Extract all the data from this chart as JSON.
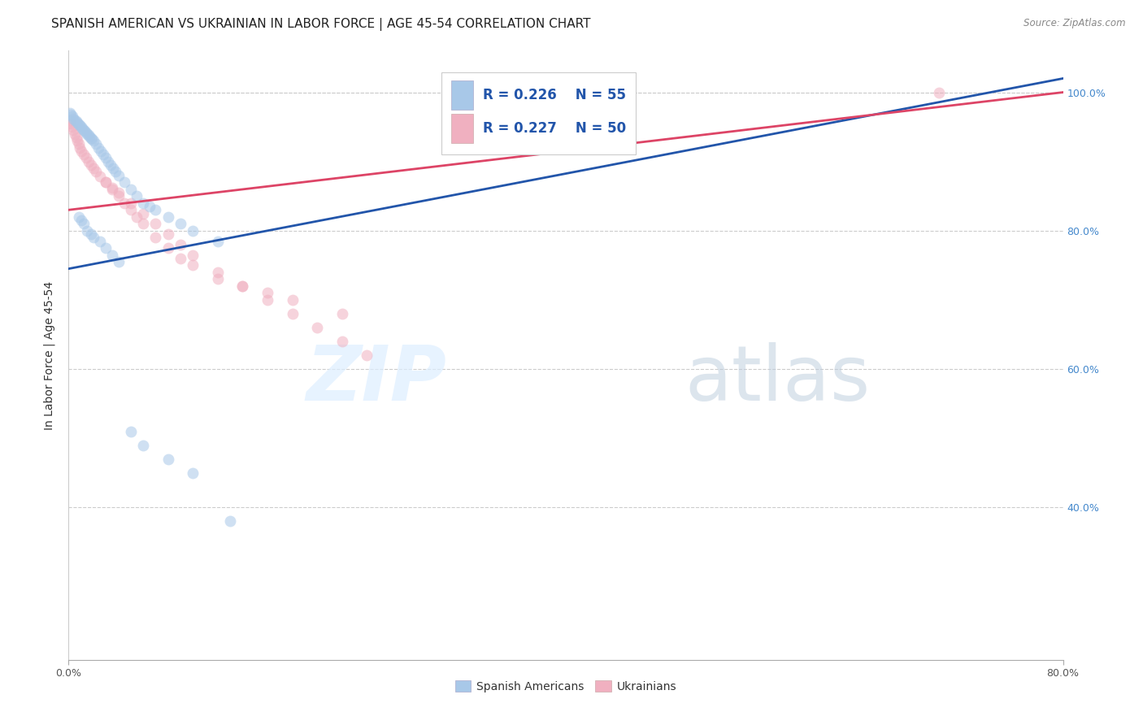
{
  "title": "SPANISH AMERICAN VS UKRAINIAN IN LABOR FORCE | AGE 45-54 CORRELATION CHART",
  "source": "Source: ZipAtlas.com",
  "ylabel": "In Labor Force | Age 45-54",
  "legend_labels": [
    "Spanish Americans",
    "Ukrainians"
  ],
  "legend_r_blue": "R = 0.226",
  "legend_n_blue": "N = 55",
  "legend_r_pink": "R = 0.227",
  "legend_n_pink": "N = 50",
  "blue_color": "#A8C8E8",
  "pink_color": "#F0B0C0",
  "line_blue_color": "#2255AA",
  "line_pink_color": "#DD4466",
  "background_color": "#ffffff",
  "watermark_zip": "ZIP",
  "watermark_atlas": "atlas",
  "xlim": [
    0.0,
    0.8
  ],
  "ylim": [
    0.18,
    1.06
  ],
  "scatter_size": 100,
  "blue_scatter_x": [
    0.001,
    0.002,
    0.003,
    0.004,
    0.005,
    0.006,
    0.007,
    0.008,
    0.009,
    0.01,
    0.011,
    0.012,
    0.013,
    0.014,
    0.015,
    0.016,
    0.017,
    0.018,
    0.019,
    0.02,
    0.022,
    0.024,
    0.026,
    0.028,
    0.03,
    0.032,
    0.034,
    0.036,
    0.038,
    0.04,
    0.045,
    0.05,
    0.055,
    0.06,
    0.065,
    0.07,
    0.08,
    0.09,
    0.1,
    0.12,
    0.008,
    0.01,
    0.012,
    0.015,
    0.018,
    0.02,
    0.025,
    0.03,
    0.035,
    0.04,
    0.05,
    0.06,
    0.08,
    0.1,
    0.13
  ],
  "blue_scatter_y": [
    0.97,
    0.968,
    0.965,
    0.962,
    0.96,
    0.958,
    0.956,
    0.954,
    0.952,
    0.95,
    0.948,
    0.946,
    0.944,
    0.942,
    0.94,
    0.938,
    0.936,
    0.934,
    0.932,
    0.93,
    0.925,
    0.92,
    0.915,
    0.91,
    0.905,
    0.9,
    0.895,
    0.89,
    0.885,
    0.88,
    0.87,
    0.86,
    0.85,
    0.84,
    0.835,
    0.83,
    0.82,
    0.81,
    0.8,
    0.785,
    0.82,
    0.815,
    0.81,
    0.8,
    0.795,
    0.79,
    0.785,
    0.775,
    0.765,
    0.755,
    0.51,
    0.49,
    0.47,
    0.45,
    0.38
  ],
  "pink_scatter_x": [
    0.001,
    0.002,
    0.003,
    0.004,
    0.005,
    0.006,
    0.007,
    0.008,
    0.009,
    0.01,
    0.012,
    0.014,
    0.016,
    0.018,
    0.02,
    0.022,
    0.025,
    0.03,
    0.035,
    0.04,
    0.05,
    0.06,
    0.07,
    0.08,
    0.09,
    0.1,
    0.12,
    0.14,
    0.16,
    0.18,
    0.2,
    0.22,
    0.24,
    0.03,
    0.035,
    0.04,
    0.045,
    0.05,
    0.055,
    0.06,
    0.07,
    0.08,
    0.09,
    0.1,
    0.12,
    0.14,
    0.16,
    0.18,
    0.22,
    0.7
  ],
  "pink_scatter_y": [
    0.96,
    0.955,
    0.95,
    0.945,
    0.94,
    0.935,
    0.93,
    0.925,
    0.92,
    0.915,
    0.91,
    0.905,
    0.9,
    0.895,
    0.89,
    0.885,
    0.878,
    0.87,
    0.862,
    0.855,
    0.84,
    0.825,
    0.81,
    0.795,
    0.78,
    0.765,
    0.74,
    0.72,
    0.7,
    0.68,
    0.66,
    0.64,
    0.62,
    0.87,
    0.86,
    0.85,
    0.84,
    0.83,
    0.82,
    0.81,
    0.79,
    0.775,
    0.76,
    0.75,
    0.73,
    0.72,
    0.71,
    0.7,
    0.68,
    1.0
  ],
  "blue_line_x": [
    0.0,
    0.8
  ],
  "blue_line_y": [
    0.745,
    1.02
  ],
  "pink_line_x": [
    0.0,
    0.8
  ],
  "pink_line_y": [
    0.83,
    1.0
  ],
  "y_tick_positions": [
    0.4,
    0.6,
    0.8,
    1.0
  ],
  "y_tick_labels": [
    "40.0%",
    "60.0%",
    "80.0%",
    "100.0%"
  ],
  "x_tick_positions": [
    0.0,
    0.8
  ],
  "x_tick_labels": [
    "0.0%",
    "80.0%"
  ],
  "title_fontsize": 11,
  "tick_fontsize": 9,
  "axis_label_fontsize": 10
}
